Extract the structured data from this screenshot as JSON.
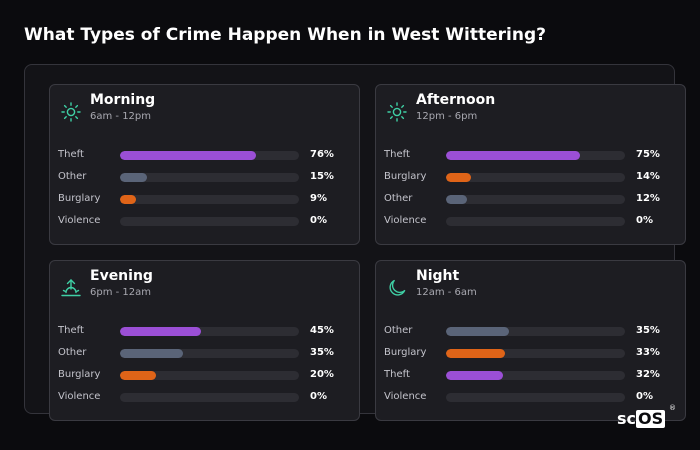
{
  "page": {
    "title": "What Types of Crime Happen When in West Wittering?"
  },
  "colors": {
    "Theft": "#9b4fd6",
    "Other": "#5a6478",
    "Burglary": "#df6418",
    "Violence": "#5a6478",
    "icon": "#3fd0a5",
    "track": "#2d2d33"
  },
  "cards": [
    {
      "title": "Morning",
      "subtitle": "6am - 12pm",
      "icon": "sun-icon",
      "rows": [
        {
          "label": "Theft",
          "value": 76,
          "display": "76%"
        },
        {
          "label": "Other",
          "value": 15,
          "display": "15%"
        },
        {
          "label": "Burglary",
          "value": 9,
          "display": "9%"
        },
        {
          "label": "Violence",
          "value": 0,
          "display": "0%"
        }
      ]
    },
    {
      "title": "Afternoon",
      "subtitle": "12pm - 6pm",
      "icon": "sun-icon",
      "rows": [
        {
          "label": "Theft",
          "value": 75,
          "display": "75%"
        },
        {
          "label": "Burglary",
          "value": 14,
          "display": "14%"
        },
        {
          "label": "Other",
          "value": 12,
          "display": "12%"
        },
        {
          "label": "Violence",
          "value": 0,
          "display": "0%"
        }
      ]
    },
    {
      "title": "Evening",
      "subtitle": "6pm - 12am",
      "icon": "sunset-icon",
      "rows": [
        {
          "label": "Theft",
          "value": 45,
          "display": "45%"
        },
        {
          "label": "Other",
          "value": 35,
          "display": "35%"
        },
        {
          "label": "Burglary",
          "value": 20,
          "display": "20%"
        },
        {
          "label": "Violence",
          "value": 0,
          "display": "0%"
        }
      ]
    },
    {
      "title": "Night",
      "subtitle": "12am - 6am",
      "icon": "moon-icon",
      "rows": [
        {
          "label": "Other",
          "value": 35,
          "display": "35%"
        },
        {
          "label": "Burglary",
          "value": 33,
          "display": "33%"
        },
        {
          "label": "Theft",
          "value": 32,
          "display": "32%"
        },
        {
          "label": "Violence",
          "value": 0,
          "display": "0%"
        }
      ]
    }
  ],
  "logo": {
    "text_sc": "sc",
    "text_os": "OS",
    "mark": "®"
  }
}
